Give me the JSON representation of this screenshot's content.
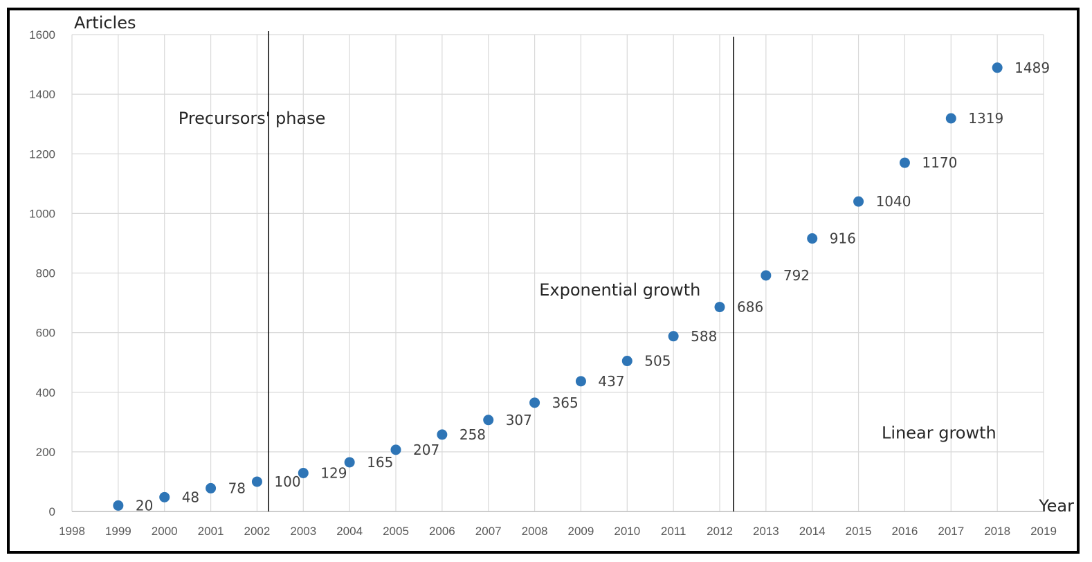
{
  "chart_data": {
    "type": "scatter",
    "title": "",
    "xlabel": "Year",
    "ylabel": "Articles",
    "xlim": [
      1998,
      2019
    ],
    "ylim": [
      0,
      1600
    ],
    "x_ticks": [
      "1998",
      "1999",
      "2000",
      "2001",
      "2002",
      "2003",
      "2004",
      "2005",
      "2006",
      "2007",
      "2008",
      "2009",
      "2010",
      "2011",
      "2012",
      "2013",
      "2014",
      "2015",
      "2016",
      "2017",
      "2018",
      "2019"
    ],
    "y_ticks": [
      "0",
      "200",
      "400",
      "600",
      "800",
      "1000",
      "1200",
      "1400",
      "1600"
    ],
    "grid": true,
    "series": [
      {
        "name": "Articles",
        "color": "#2E75B6",
        "x": [
          1999,
          2000,
          2001,
          2002,
          2003,
          2004,
          2005,
          2006,
          2007,
          2008,
          2009,
          2010,
          2011,
          2012,
          2013,
          2014,
          2015,
          2016,
          2017,
          2018
        ],
        "values": [
          20,
          48,
          78,
          100,
          129,
          165,
          207,
          258,
          307,
          365,
          437,
          505,
          588,
          686,
          792,
          916,
          1040,
          1170,
          1319,
          1489
        ],
        "labels": [
          "20",
          "48",
          "78",
          "100",
          "129",
          "165",
          "207",
          "258",
          "307",
          "365",
          "437",
          "505",
          "588",
          "686",
          "792",
          "916",
          "1040",
          "1170",
          "1319",
          "1489"
        ]
      }
    ],
    "phase_dividers": [
      2002.25,
      2012.3
    ],
    "annotations": [
      {
        "text": "Precursors' phase",
        "x": 2000.3,
        "y": 1300
      },
      {
        "text": "Exponential growth",
        "x": 2008.1,
        "y": 725
      },
      {
        "text": "Linear growth",
        "x": 2015.5,
        "y": 245
      }
    ]
  }
}
